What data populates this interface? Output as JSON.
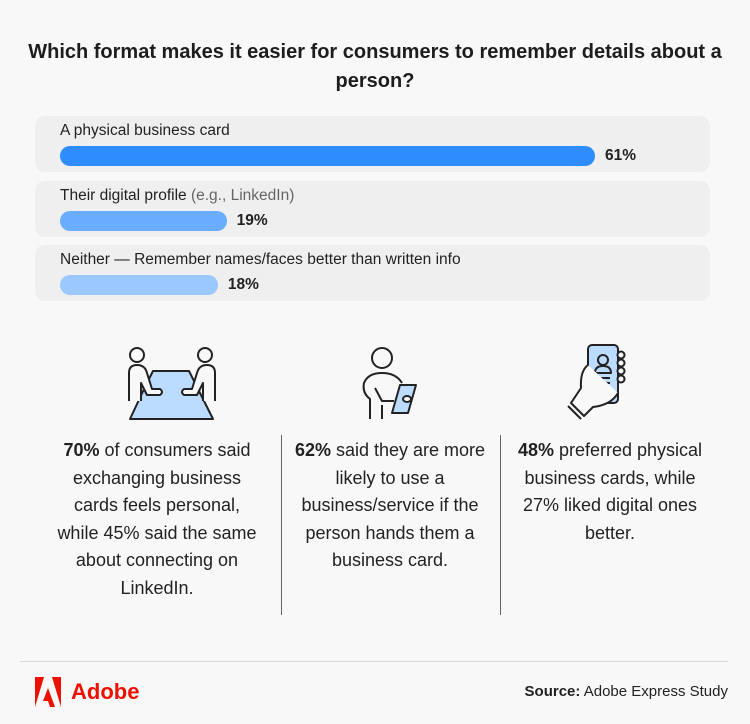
{
  "title": "Which format makes it easier for consumers to remember details about a person?",
  "chart_data": {
    "type": "bar",
    "orientation": "horizontal",
    "title": "Which format makes it easier for consumers to remember details about a person?",
    "categories": [
      "A physical business card",
      "Their digital profile (e.g., LinkedIn)",
      "Neither — Remember names/faces better than written info"
    ],
    "values": [
      61,
      19,
      18
    ],
    "data_labels": [
      "61%",
      "19%",
      "18%"
    ],
    "unit": "%",
    "xlim": [
      0,
      100
    ],
    "grid": false,
    "bar_colors": [
      "#2e8cff",
      "#6aadff",
      "#9ac8ff"
    ]
  },
  "rows": [
    {
      "label": "A physical business card",
      "label_muted": "",
      "pct": "61%"
    },
    {
      "label": "Their digital profile",
      "label_muted": "(e.g., LinkedIn)",
      "pct": "19%"
    },
    {
      "label": "Neither — Remember names/faces better than written info",
      "label_muted": "",
      "pct": "18%"
    }
  ],
  "stats": [
    {
      "icon": "meeting-table-icon",
      "bold": "70%",
      "text": " of consumers said exchanging business cards feels personal, while 45% said the same about connecting on LinkedIn."
    },
    {
      "icon": "person-with-card-icon",
      "bold": "62%",
      "text": " said they are more likely to use a business/service if the person hands them a business card."
    },
    {
      "icon": "phone-profile-icon",
      "bold": "48%",
      "text": " preferred physical business cards, while 27% liked digital ones better."
    }
  ],
  "footer": {
    "brand": "Adobe",
    "source_label": "Source:",
    "source_text": " Adobe Express Study"
  },
  "colors": {
    "brand": "#eb1000",
    "icon_fill": "#bcdcff",
    "background": "#f8f8f8"
  }
}
